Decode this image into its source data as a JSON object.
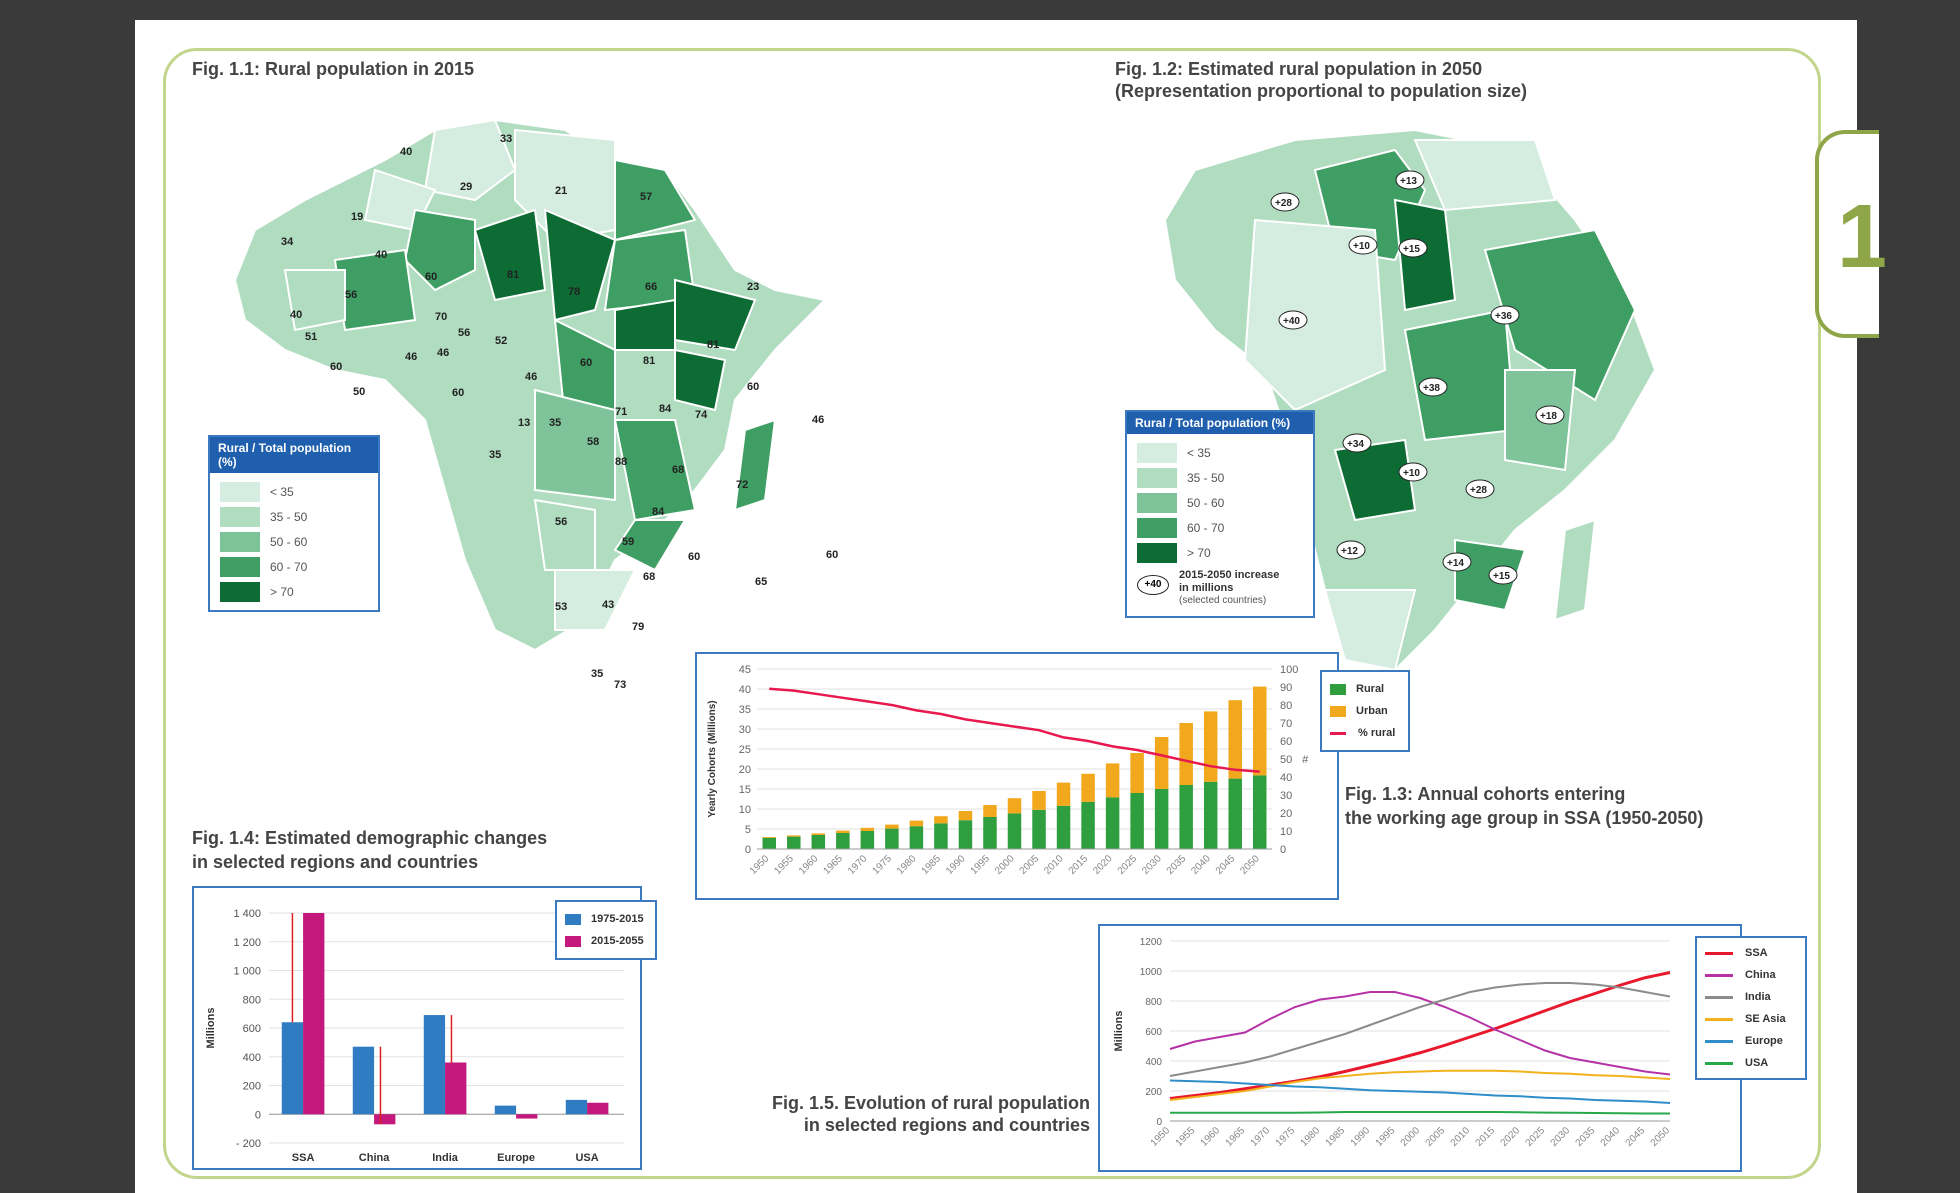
{
  "fig11": {
    "title": "Fig. 1.1: Rural population in 2015",
    "legend_title": "Rural / Total population (%)",
    "legend": [
      {
        "label": "< 35",
        "color": "#d5ece0"
      },
      {
        "label": "35 - 50",
        "color": "#b0dcc0"
      },
      {
        "label": "50 - 60",
        "color": "#7ec39a"
      },
      {
        "label": "60 - 70",
        "color": "#3f9e63"
      },
      {
        "label": "> 70",
        "color": "#0d6b34"
      }
    ],
    "labels": [
      "40",
      "33",
      "29",
      "21",
      "57",
      "19",
      "40",
      "34",
      "56",
      "40",
      "51",
      "60",
      "50",
      "60",
      "70",
      "81",
      "78",
      "66",
      "23",
      "46",
      "46",
      "56",
      "52",
      "60",
      "46",
      "60",
      "13",
      "35",
      "35",
      "81",
      "81",
      "60",
      "71",
      "58",
      "88",
      "84",
      "74",
      "68",
      "46",
      "72",
      "56",
      "84",
      "59",
      "68",
      "60",
      "65",
      "60",
      "53",
      "43",
      "79",
      "35",
      "73"
    ]
  },
  "fig12": {
    "title": "Fig. 1.2: Estimated rural population in 2050\n(Representation proportional to population size)",
    "legend_title": "Rural / Total population (%)",
    "legend": [
      {
        "label": "< 35",
        "color": "#d5ece0"
      },
      {
        "label": "35 - 50",
        "color": "#b0dcc0"
      },
      {
        "label": "50 - 60",
        "color": "#7ec39a"
      },
      {
        "label": "60 - 70",
        "color": "#3f9e63"
      },
      {
        "label": "> 70",
        "color": "#0d6b34"
      }
    ],
    "increase_label": "2015-2050 increase\nin millions",
    "increase_note": "(selected countries)",
    "increase_sample": "+40",
    "bubbles": [
      "+13",
      "+28",
      "+10",
      "+15",
      "+40",
      "+36",
      "+38",
      "+18",
      "+34",
      "+10",
      "+28",
      "+12",
      "+14",
      "+15"
    ]
  },
  "fig13": {
    "title": "Fig. 1.3: Annual cohorts entering\nthe working age group in SSA (1950-2050)",
    "chart_data": {
      "type": "bar",
      "stacked": true,
      "categories": [
        "1950",
        "1955",
        "1960",
        "1965",
        "1970",
        "1975",
        "1980",
        "1985",
        "1990",
        "1995",
        "2000",
        "2005",
        "2010",
        "2015",
        "2020",
        "2025",
        "2030",
        "2035",
        "2040",
        "2045",
        "2050"
      ],
      "series": [
        {
          "name": "Rural",
          "color": "#2e9e3e",
          "values": [
            2.8,
            3.1,
            3.5,
            4.0,
            4.5,
            5.1,
            5.7,
            6.4,
            7.2,
            8.0,
            8.9,
            9.8,
            10.8,
            11.8,
            12.9,
            14.0,
            15.0,
            16.0,
            16.8,
            17.6,
            18.4
          ]
        },
        {
          "name": "Urban",
          "color": "#f2a81d",
          "values": [
            0.2,
            0.3,
            0.4,
            0.6,
            0.8,
            1.0,
            1.4,
            1.8,
            2.3,
            3.0,
            3.8,
            4.7,
            5.8,
            7.0,
            8.5,
            10.0,
            13.0,
            15.5,
            17.6,
            19.6,
            22.2
          ]
        },
        {
          "name": "% rural",
          "color": "#e8194f",
          "axis": "right",
          "values": [
            89,
            88,
            86,
            84,
            82,
            80,
            77,
            75,
            72,
            70,
            68,
            66,
            62,
            60,
            57,
            55,
            52,
            49,
            46,
            44,
            43
          ]
        }
      ],
      "ylabel": "Yearly Cohorts (Millions)",
      "ylim": [
        0,
        45
      ],
      "yticks": [
        "0",
        "5",
        "10",
        "15",
        "20",
        "25",
        "30",
        "35",
        "40",
        "45"
      ],
      "y2lim": [
        0,
        100
      ],
      "y2ticks": [
        "0",
        "10",
        "20",
        "30",
        "40",
        "50",
        "60",
        "70",
        "80",
        "90",
        "100"
      ],
      "y2label": "#",
      "legend": "right"
    }
  },
  "fig14": {
    "title": "Fig. 1.4: Estimated demographic changes\nin selected regions and countries",
    "chart_data": {
      "type": "bar",
      "categories": [
        "SSA",
        "China",
        "India",
        "Europe",
        "USA"
      ],
      "series": [
        {
          "name": "1975-2015",
          "color": "#2f7cc3",
          "values": [
            640,
            470,
            690,
            60,
            100
          ]
        },
        {
          "name": "2015-2055",
          "color": "#c4187d",
          "values": [
            1400,
            -70,
            360,
            -30,
            80
          ]
        }
      ],
      "ylabel": "Millions",
      "ylim": [
        -200,
        1400
      ],
      "yticks": [
        "- 200",
        "0",
        "200",
        "400",
        "600",
        "800",
        "1 000",
        "1 200",
        "1 400"
      ],
      "legend": "top-right"
    }
  },
  "fig15": {
    "title": "Fig. 1.5. Evolution of rural population\nin selected regions and countries",
    "chart_data": {
      "type": "line",
      "x": [
        "1950",
        "1955",
        "1960",
        "1965",
        "1970",
        "1975",
        "1980",
        "1985",
        "1990",
        "1995",
        "2000",
        "2005",
        "2010",
        "2015",
        "2020",
        "2025",
        "2030",
        "2035",
        "2040",
        "2045",
        "2050"
      ],
      "series": [
        {
          "name": "SSA",
          "color": "#e8192c",
          "values": [
            150,
            170,
            190,
            215,
            240,
            265,
            295,
            330,
            370,
            410,
            455,
            505,
            560,
            615,
            675,
            735,
            795,
            850,
            905,
            955,
            990
          ]
        },
        {
          "name": "China",
          "color": "#b533a7",
          "values": [
            480,
            530,
            560,
            590,
            680,
            760,
            810,
            830,
            860,
            860,
            820,
            760,
            690,
            610,
            540,
            470,
            420,
            390,
            360,
            330,
            310
          ]
        },
        {
          "name": "India",
          "color": "#8c8c8c",
          "values": [
            300,
            330,
            360,
            390,
            430,
            480,
            530,
            580,
            640,
            700,
            760,
            810,
            860,
            890,
            910,
            920,
            920,
            910,
            890,
            860,
            830
          ]
        },
        {
          "name": "SE Asia",
          "color": "#f2b21b",
          "values": [
            140,
            160,
            180,
            200,
            230,
            260,
            285,
            300,
            315,
            325,
            330,
            335,
            335,
            335,
            330,
            320,
            315,
            305,
            300,
            290,
            280
          ]
        },
        {
          "name": "Europe",
          "color": "#2f8ec9",
          "values": [
            270,
            265,
            260,
            250,
            240,
            230,
            225,
            215,
            205,
            200,
            195,
            190,
            180,
            170,
            165,
            155,
            150,
            140,
            135,
            130,
            120
          ]
        },
        {
          "name": "USA",
          "color": "#28a84a",
          "values": [
            55,
            55,
            55,
            55,
            55,
            55,
            57,
            60,
            60,
            60,
            60,
            60,
            60,
            60,
            58,
            56,
            55,
            53,
            52,
            50,
            50
          ]
        }
      ],
      "ylabel": "Millions",
      "ylim": [
        0,
        1200
      ],
      "yticks": [
        "0",
        "200",
        "400",
        "600",
        "800",
        "1000",
        "1200"
      ],
      "legend": "right"
    }
  },
  "chapter_tab": "1"
}
